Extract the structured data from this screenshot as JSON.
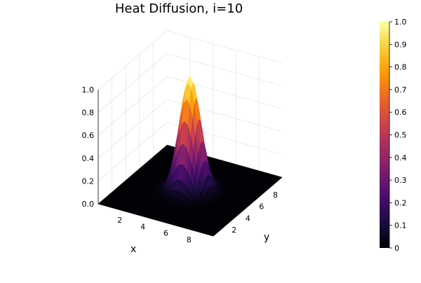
{
  "chart_data": {
    "type": "surface",
    "title": "Heat Diffusion, i=10",
    "xlabel": "x",
    "ylabel": "y",
    "zlabel": "",
    "xlim": [
      0,
      10
    ],
    "ylim": [
      0,
      10
    ],
    "zlim": [
      0,
      1
    ],
    "x_ticks": [
      "2",
      "4",
      "6",
      "8"
    ],
    "y_ticks": [
      "2",
      "4",
      "6",
      "8"
    ],
    "z_ticks": [
      "0.0",
      "0.2",
      "0.4",
      "0.6",
      "0.8",
      "1.0"
    ],
    "surface": {
      "shape": "gaussian peak",
      "peak_x": 5,
      "peak_y": 5,
      "peak_value": 1.0,
      "spread_sigma": 0.8,
      "background_value": 0.0
    },
    "colorbar": {
      "min": 0,
      "max": 1,
      "ticks": [
        "0",
        "0.1",
        "0.2",
        "0.3",
        "0.4",
        "0.5",
        "0.6",
        "0.7",
        "0.8",
        "0.9",
        "1.0"
      ],
      "colormap": "inferno",
      "colors": [
        "#000004",
        "#1b0c41",
        "#4a0c6b",
        "#781c6d",
        "#a52c60",
        "#cf4446",
        "#ed6925",
        "#fb9b06",
        "#f7d13d",
        "#fcffa4"
      ]
    },
    "grid": true
  }
}
